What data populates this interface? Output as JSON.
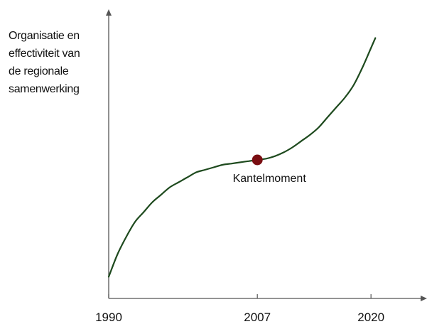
{
  "chart_data": {
    "type": "line",
    "title": "",
    "ylabel_lines": [
      "Organisatie en",
      "effectiviteit van",
      "de regionale",
      "samenwerking"
    ],
    "xlabel": "",
    "x_ticks": [
      1990,
      2007,
      2020
    ],
    "xlim": [
      1990,
      2026
    ],
    "ylim": [
      0,
      1
    ],
    "grid": false,
    "legend": "none",
    "series": [
      {
        "x": [
          1990,
          1991,
          1992,
          1993,
          1994,
          1995,
          1996,
          1997,
          1998,
          1999,
          2000,
          2001,
          2002,
          2003,
          2004,
          2005,
          2006,
          2007,
          2008,
          2009,
          2010,
          2011,
          2012,
          2013,
          2014,
          2015,
          2016,
          2017,
          2018,
          2019,
          2020,
          2020.5
        ],
        "y": [
          0.03,
          0.12,
          0.19,
          0.25,
          0.29,
          0.33,
          0.36,
          0.39,
          0.41,
          0.43,
          0.45,
          0.46,
          0.47,
          0.48,
          0.485,
          0.49,
          0.495,
          0.5,
          0.505,
          0.515,
          0.53,
          0.55,
          0.575,
          0.6,
          0.63,
          0.67,
          0.71,
          0.75,
          0.8,
          0.87,
          0.95,
          0.99
        ]
      }
    ],
    "annotation": {
      "label": "Kantelmoment",
      "x": 2007,
      "y": 0.5
    },
    "colors": {
      "line": "#1e4a1e",
      "marker": "#7a0e12",
      "axis": "#555555"
    }
  }
}
